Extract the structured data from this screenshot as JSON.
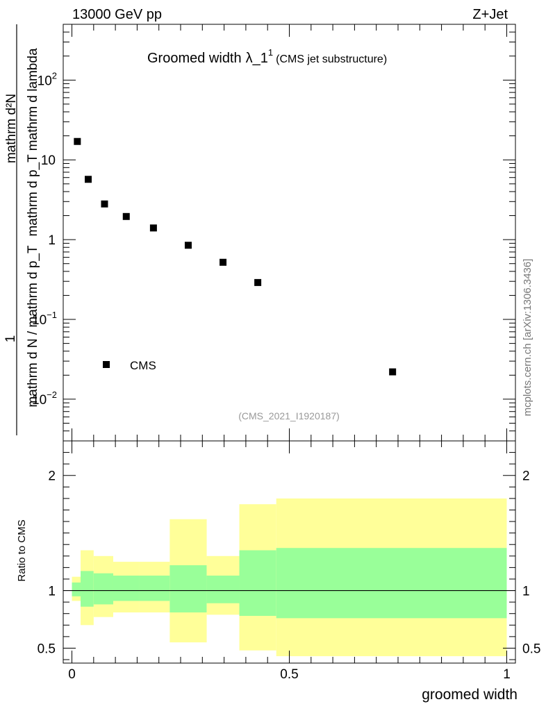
{
  "header": {
    "left": "13000 GeV pp",
    "right": "Z+Jet"
  },
  "title": {
    "main": "Groomed width",
    "symbol": "λ_1",
    "sup": "1",
    "sub": "(CMS jet substructure)"
  },
  "ylabel_parts": {
    "one": "1",
    "den": "mathrm d N / mathrm d p_T",
    "num": "mathrm d²N",
    "den2": "mathrm d p_T mathrm d lambda"
  },
  "side_label": "mcplots.cern.ch [arXiv:1306.3436]",
  "analysis_id": "(CMS_2021_I1920187)",
  "legend": {
    "label": "CMS"
  },
  "ratio_ylabel": "Ratio to CMS",
  "xlabel": "groomed width",
  "colors": {
    "data": "#000000",
    "band_inner": "#99ff99",
    "band_outer": "#ffff99",
    "ref_line": "#000000"
  },
  "chart_data": [
    {
      "type": "scatter",
      "panel": "main",
      "yscale": "log",
      "xlim": [
        -0.02,
        1.02
      ],
      "ylim": [
        0.003,
        500
      ],
      "xticks": [
        0,
        0.5,
        1
      ],
      "yticks": [
        {
          "v": 0.01,
          "label": "10",
          "exp": "−2"
        },
        {
          "v": 0.1,
          "label": "10",
          "exp": "−1"
        },
        {
          "v": 1,
          "label": "1",
          "exp": ""
        },
        {
          "v": 10,
          "label": "10",
          "exp": ""
        },
        {
          "v": 100,
          "label": "10",
          "exp": "2"
        }
      ],
      "series": [
        {
          "name": "CMS",
          "x": [
            0.0125,
            0.0375,
            0.075,
            0.125,
            0.1875,
            0.2675,
            0.3475,
            0.4275,
            0.7375
          ],
          "y": [
            17,
            5.7,
            2.8,
            1.95,
            1.4,
            0.85,
            0.52,
            0.29,
            0.022
          ]
        }
      ]
    },
    {
      "type": "area",
      "panel": "ratio",
      "xlim": [
        -0.02,
        1.02
      ],
      "ylim": [
        0.37,
        2.3
      ],
      "yticks": [
        0.5,
        1,
        2
      ],
      "ytick_labels": [
        "0.5",
        "1",
        "2"
      ],
      "xticks": [
        0,
        0.5,
        1
      ],
      "xtick_labels": [
        "0",
        "0.5",
        "1"
      ],
      "bins": [
        {
          "lo": 0.0,
          "hi": 0.02,
          "inner": [
            0.95,
            1.07
          ],
          "outer": [
            0.91,
            1.12
          ]
        },
        {
          "lo": 0.02,
          "hi": 0.05,
          "inner": [
            0.86,
            1.17
          ],
          "outer": [
            0.7,
            1.35
          ]
        },
        {
          "lo": 0.05,
          "hi": 0.095,
          "inner": [
            0.88,
            1.15
          ],
          "outer": [
            0.77,
            1.3
          ]
        },
        {
          "lo": 0.095,
          "hi": 0.155,
          "inner": [
            0.91,
            1.13
          ],
          "outer": [
            0.81,
            1.25
          ]
        },
        {
          "lo": 0.155,
          "hi": 0.225,
          "inner": [
            0.91,
            1.13
          ],
          "outer": [
            0.81,
            1.25
          ]
        },
        {
          "lo": 0.225,
          "hi": 0.31,
          "inner": [
            0.81,
            1.22
          ],
          "outer": [
            0.55,
            1.62
          ]
        },
        {
          "lo": 0.31,
          "hi": 0.385,
          "inner": [
            0.89,
            1.13
          ],
          "outer": [
            0.79,
            1.3
          ]
        },
        {
          "lo": 0.385,
          "hi": 0.47,
          "inner": [
            0.78,
            1.35
          ],
          "outer": [
            0.48,
            1.75
          ]
        },
        {
          "lo": 0.47,
          "hi": 1.0,
          "inner": [
            0.76,
            1.37
          ],
          "outer": [
            0.43,
            1.8
          ]
        }
      ]
    }
  ]
}
